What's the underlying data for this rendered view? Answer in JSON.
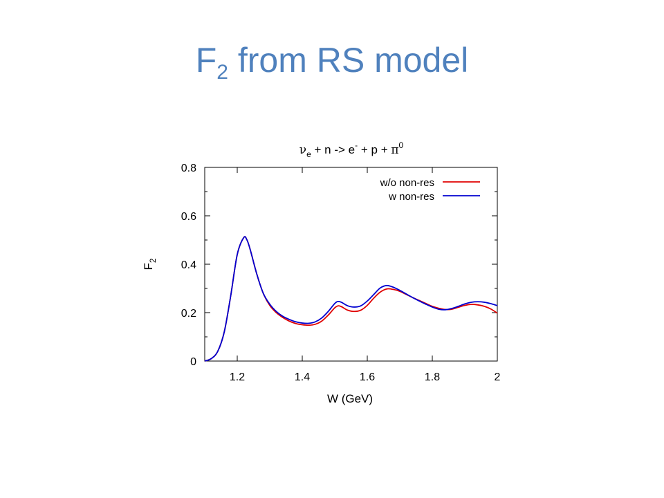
{
  "slide": {
    "title_main": "F",
    "title_sub": "2",
    "title_rest": " from RS model"
  },
  "colors": {
    "title": "#4f81bd",
    "series_without": "#e00000",
    "series_with": "#0000d0"
  },
  "chart_data": {
    "type": "line",
    "title": {
      "parts": [
        "ν",
        "e",
        " + n -> e",
        "-",
        " + p + ",
        "π",
        "0"
      ]
    },
    "xlabel": "W (GeV)",
    "ylabel_main": "F",
    "ylabel_sub": "2",
    "xlim": [
      1.1,
      2.0
    ],
    "ylim": [
      0,
      0.8
    ],
    "xticks": [
      1.2,
      1.4,
      1.6,
      1.8,
      2.0
    ],
    "xtick_labels": [
      "1.2",
      "1.4",
      "1.6",
      "1.8",
      "2"
    ],
    "yticks": [
      0,
      0.2,
      0.4,
      0.6,
      0.8
    ],
    "ytick_labels": [
      "0",
      "0.2",
      "0.4",
      "0.6",
      "0.8"
    ],
    "grid": false,
    "legend": "top-right",
    "x": [
      1.1,
      1.12,
      1.14,
      1.16,
      1.18,
      1.2,
      1.22,
      1.23,
      1.24,
      1.26,
      1.28,
      1.3,
      1.32,
      1.34,
      1.36,
      1.38,
      1.4,
      1.42,
      1.44,
      1.46,
      1.48,
      1.5,
      1.51,
      1.52,
      1.54,
      1.56,
      1.58,
      1.6,
      1.62,
      1.64,
      1.66,
      1.68,
      1.7,
      1.72,
      1.74,
      1.76,
      1.78,
      1.8,
      1.82,
      1.84,
      1.86,
      1.88,
      1.9,
      1.92,
      1.94,
      1.96,
      1.98,
      2.0
    ],
    "series": [
      {
        "name": "w/o non-res",
        "color": "#e00000",
        "values": [
          0.0,
          0.01,
          0.04,
          0.12,
          0.27,
          0.44,
          0.51,
          0.5,
          0.46,
          0.36,
          0.28,
          0.23,
          0.2,
          0.18,
          0.165,
          0.155,
          0.15,
          0.148,
          0.152,
          0.165,
          0.19,
          0.22,
          0.228,
          0.225,
          0.21,
          0.205,
          0.21,
          0.23,
          0.26,
          0.285,
          0.298,
          0.296,
          0.288,
          0.275,
          0.262,
          0.25,
          0.238,
          0.226,
          0.218,
          0.213,
          0.214,
          0.222,
          0.23,
          0.234,
          0.232,
          0.226,
          0.215,
          0.198
        ]
      },
      {
        "name": "w non-res",
        "color": "#0000d0",
        "values": [
          0.0,
          0.01,
          0.04,
          0.12,
          0.27,
          0.44,
          0.51,
          0.5,
          0.46,
          0.36,
          0.28,
          0.235,
          0.205,
          0.185,
          0.172,
          0.162,
          0.157,
          0.156,
          0.162,
          0.178,
          0.205,
          0.238,
          0.246,
          0.243,
          0.228,
          0.223,
          0.228,
          0.248,
          0.275,
          0.302,
          0.312,
          0.305,
          0.292,
          0.277,
          0.262,
          0.248,
          0.235,
          0.223,
          0.214,
          0.212,
          0.217,
          0.226,
          0.236,
          0.243,
          0.245,
          0.243,
          0.237,
          0.229
        ]
      }
    ]
  }
}
